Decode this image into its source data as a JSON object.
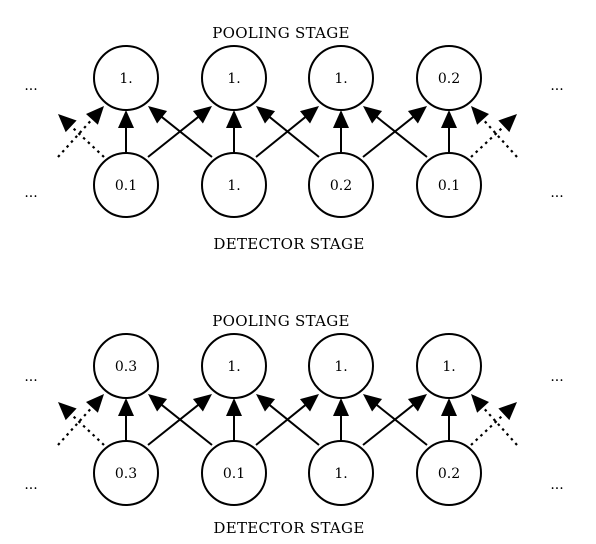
{
  "panels": [
    {
      "pooling_label": "POOLING STAGE",
      "detector_label": "DETECTOR STAGE",
      "pooling_values": [
        "1.",
        "1.",
        "1.",
        "0.2"
      ],
      "detector_values": [
        "0.1",
        "1.",
        "0.2",
        "0.1"
      ]
    },
    {
      "pooling_label": "POOLING STAGE",
      "detector_label": "DETECTOR STAGE",
      "pooling_values": [
        "0.3",
        "1.",
        "1.",
        "1."
      ],
      "detector_values": [
        "0.3",
        "0.1",
        "1.",
        "0.2"
      ]
    }
  ],
  "ellipsis": "..."
}
